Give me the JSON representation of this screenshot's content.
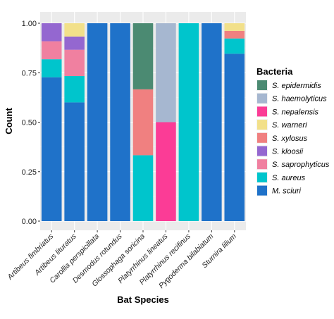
{
  "chart_data": {
    "type": "bar",
    "stacked": true,
    "xlabel": "Bat  Species",
    "ylabel": "Count",
    "ylim": [
      0,
      1
    ],
    "yticks": [
      0.0,
      0.25,
      0.5,
      0.75,
      1.0
    ],
    "ytick_labels": [
      "0.00",
      "0.25",
      "0.50",
      "0.75",
      "1.00"
    ],
    "grid": true,
    "legend_position": "right",
    "legend_title": "Bacteria",
    "categories": [
      "Artibeus fimbriatus",
      "Artibeus lituratus",
      "Carollia perspicillata",
      "Desmodus rotundus",
      "Glossophaga soricina",
      "Platyrrhinus lineatus",
      "Platyrrhinus recifinus",
      "Pygoderma bilabiatum",
      "Sturnira lilium"
    ],
    "series": [
      {
        "name": "M. sciuri",
        "color": "#1f72c9",
        "values": [
          0.727,
          0.6,
          1.0,
          1.0,
          0.0,
          0.0,
          0.0,
          1.0,
          0.846
        ]
      },
      {
        "name": "S. aureus",
        "color": "#00c5cc",
        "values": [
          0.091,
          0.133,
          0.0,
          0.0,
          0.333,
          0.0,
          1.0,
          0.0,
          0.077
        ]
      },
      {
        "name": "S. saprophyticus",
        "color": "#f080a0",
        "values": [
          0.091,
          0.133,
          0.0,
          0.0,
          0.0,
          0.0,
          0.0,
          0.0,
          0.0
        ]
      },
      {
        "name": "S. kloosii",
        "color": "#9467d0",
        "values": [
          0.091,
          0.067,
          0.0,
          0.0,
          0.0,
          0.0,
          0.0,
          0.0,
          0.0
        ]
      },
      {
        "name": "S. xylosus",
        "color": "#f08080",
        "values": [
          0.0,
          0.0,
          0.0,
          0.0,
          0.333,
          0.0,
          0.0,
          0.0,
          0.038
        ]
      },
      {
        "name": "S. warneri",
        "color": "#f2e08a",
        "values": [
          0.0,
          0.067,
          0.0,
          0.0,
          0.0,
          0.0,
          0.0,
          0.0,
          0.039
        ]
      },
      {
        "name": "S. nepalensis",
        "color": "#fb3c96",
        "values": [
          0.0,
          0.0,
          0.0,
          0.0,
          0.0,
          0.5,
          0.0,
          0.0,
          0.0
        ]
      },
      {
        "name": "S. haemolyticus",
        "color": "#a6b7d0",
        "values": [
          0.0,
          0.0,
          0.0,
          0.0,
          0.0,
          0.5,
          0.0,
          0.0,
          0.0
        ]
      },
      {
        "name": "S. epidermidis",
        "color": "#4b8a72",
        "values": [
          0.0,
          0.0,
          0.0,
          0.0,
          0.334,
          0.0,
          0.0,
          0.0,
          0.0
        ]
      }
    ],
    "legend_order": [
      "S. epidermidis",
      "S. haemolyticus",
      "S. nepalensis",
      "S. warneri",
      "S. xylosus",
      "S. kloosii",
      "S. saprophyticus",
      "S. aureus",
      "M. sciuri"
    ]
  }
}
